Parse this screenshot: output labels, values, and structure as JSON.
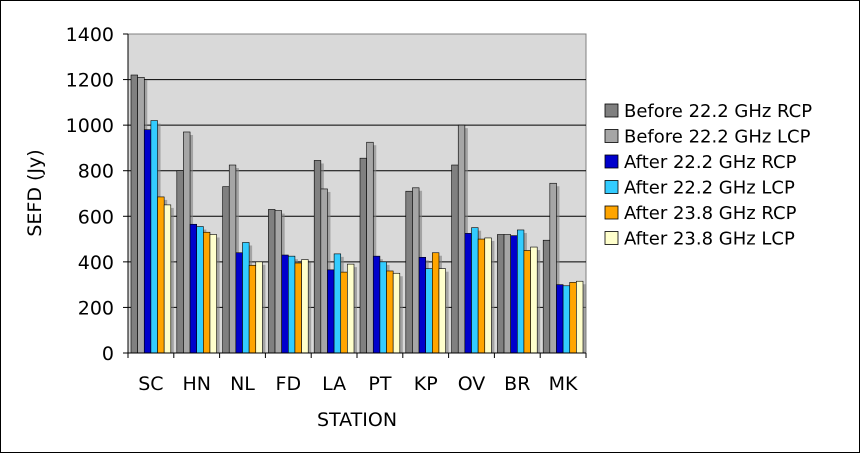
{
  "chart_data": {
    "type": "bar",
    "title": "",
    "xlabel": "STATION",
    "ylabel": "SEFD (Jy)",
    "ylim": [
      0,
      1400
    ],
    "yticks": [
      0,
      200,
      400,
      600,
      800,
      1000,
      1200,
      1400
    ],
    "grid": "horizontal",
    "legend_position": "right",
    "background": "#d9d9d9",
    "categories": [
      "SC",
      "HN",
      "NL",
      "FD",
      "LA",
      "PT",
      "KP",
      "OV",
      "BR",
      "MK"
    ],
    "series": [
      {
        "name": "Before 22.2 GHz RCP",
        "color": "#808080",
        "values": [
          1220,
          800,
          730,
          630,
          845,
          855,
          710,
          825,
          520,
          495
        ]
      },
      {
        "name": "Before 22.2 GHz LCP",
        "color": "#a6a6a6",
        "values": [
          1210,
          970,
          825,
          625,
          720,
          925,
          725,
          1000,
          520,
          745
        ]
      },
      {
        "name": "After 22.2 GHz RCP",
        "color": "#0000cc",
        "values": [
          980,
          565,
          440,
          430,
          365,
          425,
          420,
          525,
          515,
          300
        ]
      },
      {
        "name": "After 22.2 GHz LCP",
        "color": "#33ccff",
        "values": [
          1020,
          555,
          485,
          425,
          435,
          400,
          370,
          550,
          540,
          295
        ]
      },
      {
        "name": "After 23.8 GHz RCP",
        "color": "#ffa500",
        "values": [
          685,
          530,
          385,
          395,
          355,
          360,
          440,
          500,
          450,
          310
        ]
      },
      {
        "name": "After 23.8 GHz LCP",
        "color": "#ffffcc",
        "values": [
          650,
          520,
          400,
          410,
          390,
          350,
          370,
          505,
          465,
          315
        ]
      }
    ]
  }
}
